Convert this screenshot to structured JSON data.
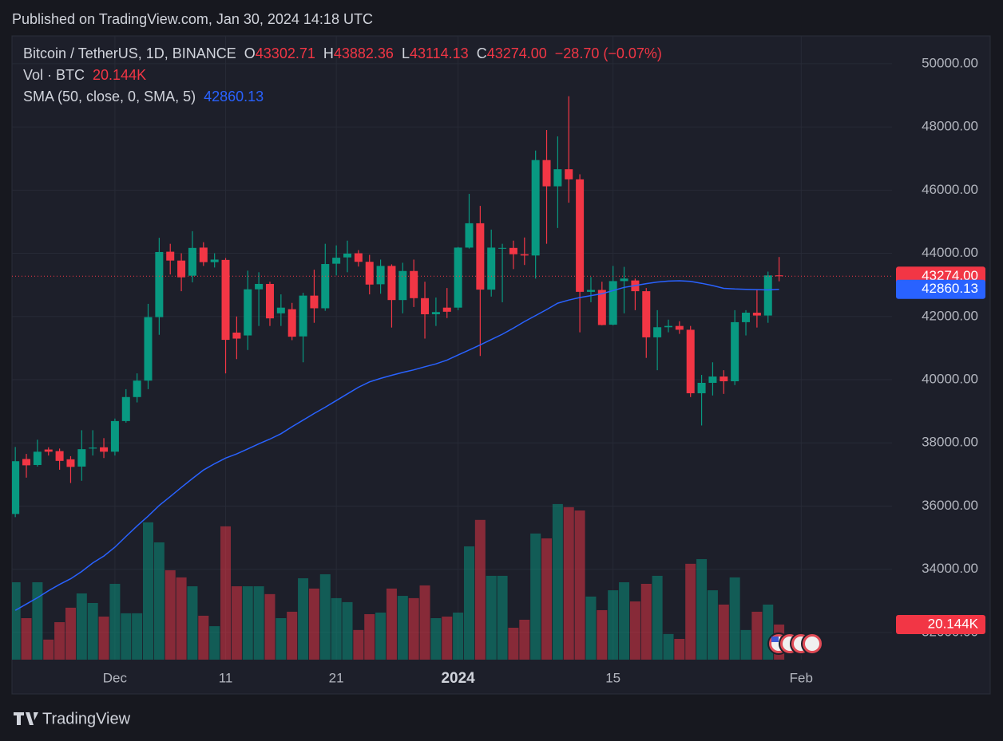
{
  "published": "Published on TradingView.com, Jan 30, 2024 14:18 UTC",
  "footer": "TradingView",
  "chart_data": {
    "type": "candlestick",
    "legend": {
      "o": "O",
      "h": "H",
      "l": "L",
      "c": "C",
      "change": "−28.70 (−0.07%)"
    },
    "xlim": [
      -0.3,
      79.2
    ],
    "xticks": [
      {
        "value": 9,
        "label": "Dec"
      },
      {
        "value": 19,
        "label": "11"
      },
      {
        "value": 29,
        "label": "21"
      },
      {
        "value": 40,
        "label": "2024"
      },
      {
        "value": 54,
        "label": "15"
      },
      {
        "value": 71,
        "label": "Feb"
      }
    ],
    "ylim": [
      31140,
      50880
    ],
    "yticks": [
      {
        "value": 32000,
        "label": "32000.00"
      },
      {
        "value": 34000,
        "label": "34000.00"
      },
      {
        "value": 36000,
        "label": "36000.00"
      },
      {
        "value": 38000,
        "label": "38000.00"
      },
      {
        "value": 40000,
        "label": "40000.00"
      },
      {
        "value": 42000,
        "label": "42000.00"
      },
      {
        "value": 44000,
        "label": "44000.00"
      },
      {
        "value": 46000,
        "label": "46000.00"
      },
      {
        "value": 48000,
        "label": "48000.00"
      },
      {
        "value": 50000,
        "label": "50000.00"
      }
    ],
    "y2lim": [
      0,
      260000
    ],
    "grid": true,
    "up_color": "#089981",
    "down_color": "#f23645",
    "series": [
      {
        "name": "Bitcoin / TetherUS, 1D, BINANCE",
        "open": [
          35750,
          37490,
          37300,
          37790,
          37740,
          37480,
          37250,
          37820,
          37860,
          37720,
          38690,
          39450,
          39970,
          41980,
          44050,
          43770,
          43290,
          44180,
          43720,
          43790,
          41490,
          41400,
          42860,
          43030,
          42100,
          42230,
          41370,
          42660,
          42260,
          43670,
          43870,
          44000,
          43730,
          43020,
          43600,
          42520,
          43440,
          42580,
          42070,
          42280,
          42280,
          44180,
          44950,
          42850,
          44160,
          44170,
          43970,
          43930,
          46950,
          46120,
          46660,
          46340,
          42780,
          42840,
          41740,
          43120,
          43140,
          42800,
          41340,
          41660,
          41700,
          41580,
          39570,
          39900,
          40100,
          39950,
          41820,
          42120,
          42030,
          43302.71
        ],
        "high": [
          37870,
          37650,
          38100,
          37860,
          37820,
          37580,
          38400,
          38400,
          38150,
          38770,
          39700,
          40200,
          42400,
          44490,
          44300,
          44000,
          44700,
          44350,
          44000,
          43850,
          42000,
          43450,
          43400,
          43100,
          42700,
          42430,
          42750,
          43480,
          44300,
          44250,
          44400,
          44100,
          43950,
          43800,
          43650,
          43700,
          43800,
          43100,
          42600,
          42900,
          44200,
          45880,
          45500,
          44750,
          44300,
          44400,
          44500,
          47250,
          47900,
          47700,
          48970,
          46500,
          43250,
          43100,
          43600,
          43570,
          43200,
          42900,
          42200,
          41900,
          41850,
          41700,
          40150,
          40550,
          40300,
          42200,
          42200,
          42840,
          43420,
          43882.36
        ],
        "low": [
          35650,
          36900,
          37250,
          37600,
          37150,
          36730,
          36800,
          37600,
          37520,
          37600,
          38640,
          39280,
          39700,
          41420,
          43330,
          42800,
          43080,
          43600,
          43550,
          40200,
          40650,
          40940,
          41700,
          41700,
          41700,
          41250,
          40550,
          41800,
          42180,
          43300,
          43400,
          43580,
          42700,
          42720,
          41650,
          42100,
          42300,
          41300,
          41700,
          41950,
          42200,
          44150,
          40750,
          42630,
          42450,
          43500,
          43630,
          43200,
          44300,
          44800,
          45600,
          41500,
          42450,
          41720,
          41720,
          42100,
          42200,
          40690,
          40300,
          41500,
          41450,
          39450,
          38550,
          39500,
          39550,
          39830,
          41400,
          41650,
          41800,
          43114.13
        ],
        "close": [
          37420,
          37290,
          37720,
          37720,
          37430,
          37240,
          37800,
          37850,
          37720,
          38690,
          39450,
          39970,
          41980,
          44040,
          43770,
          43240,
          44170,
          43720,
          43800,
          41260,
          41300,
          42860,
          43030,
          41940,
          42280,
          41360,
          42660,
          42260,
          43660,
          43860,
          43990,
          43730,
          43010,
          43600,
          42520,
          43440,
          42580,
          42070,
          42140,
          42150,
          44180,
          44950,
          42850,
          44180,
          44170,
          43970,
          43930,
          46950,
          46120,
          46660,
          46340,
          42780,
          42840,
          41730,
          43120,
          43200,
          42800,
          41340,
          41660,
          41700,
          41580,
          39570,
          39900,
          40100,
          39950,
          41820,
          42120,
          42030,
          43300,
          43274
        ],
        "close_labels": [
          null,
          null,
          null,
          null,
          null,
          null,
          null,
          null,
          null,
          null,
          null,
          null,
          null,
          null,
          null,
          null,
          null,
          null,
          null,
          null,
          null,
          null,
          null,
          null,
          null,
          null,
          null,
          null,
          null,
          null,
          null,
          null,
          null,
          null,
          null,
          null,
          null,
          null,
          null,
          null,
          null,
          null,
          null,
          null,
          null,
          null,
          null,
          null,
          null,
          null,
          null,
          null,
          null,
          null,
          null,
          null,
          null,
          null,
          null,
          null,
          null,
          null,
          null,
          null,
          null,
          null,
          null,
          null,
          null,
          "43274.00"
        ]
      },
      {
        "name": "Vol · BTC",
        "axis": "y2",
        "values": [
          44400,
          23800,
          44400,
          11500,
          21500,
          29800,
          38000,
          32500,
          24700,
          43500,
          26600,
          26600,
          78800,
          67300,
          51300,
          47200,
          42100,
          25200,
          19200,
          76500,
          42100,
          42100,
          42100,
          37600,
          23800,
          27500,
          46700,
          40800,
          49000,
          35300,
          33000,
          17000,
          26100,
          27000,
          40800,
          36600,
          35300,
          42600,
          23800,
          24700,
          27000,
          65000,
          80200,
          48100,
          48100,
          18300,
          22900,
          72400,
          69600,
          89300,
          87500,
          85600,
          36200,
          28400,
          39800,
          44400,
          33400,
          43500,
          48100,
          14700,
          11900,
          55000,
          57700,
          39800,
          31600,
          47200,
          17000,
          27500,
          31600,
          20144
        ],
        "value_labels": [
          null,
          null,
          null,
          null,
          null,
          null,
          null,
          null,
          null,
          null,
          null,
          null,
          null,
          null,
          null,
          null,
          null,
          null,
          null,
          null,
          null,
          null,
          null,
          null,
          null,
          null,
          null,
          null,
          null,
          null,
          null,
          null,
          null,
          null,
          null,
          null,
          null,
          null,
          null,
          null,
          null,
          null,
          null,
          null,
          null,
          null,
          null,
          null,
          null,
          null,
          null,
          null,
          null,
          null,
          null,
          null,
          null,
          null,
          null,
          null,
          null,
          null,
          null,
          null,
          null,
          null,
          null,
          null,
          null,
          "20.144K"
        ]
      },
      {
        "name": "SMA (50, close, 0, SMA, 5)",
        "color": "#2962ff",
        "values": [
          32700,
          32900,
          33100,
          33320,
          33520,
          33700,
          33930,
          34200,
          34420,
          34700,
          35040,
          35370,
          35680,
          36020,
          36300,
          36590,
          36870,
          37140,
          37340,
          37520,
          37650,
          37810,
          37970,
          38120,
          38290,
          38510,
          38720,
          38930,
          39130,
          39340,
          39550,
          39760,
          39930,
          40040,
          40140,
          40230,
          40310,
          40410,
          40500,
          40620,
          40780,
          40940,
          41100,
          41270,
          41440,
          41630,
          41840,
          42030,
          42220,
          42420,
          42520,
          42600,
          42660,
          42720,
          42820,
          42920,
          42980,
          43040,
          43090,
          43120,
          43130,
          43110,
          43050,
          42980,
          42890,
          42870,
          42860,
          42850,
          42840,
          42860.13
        ]
      }
    ]
  }
}
